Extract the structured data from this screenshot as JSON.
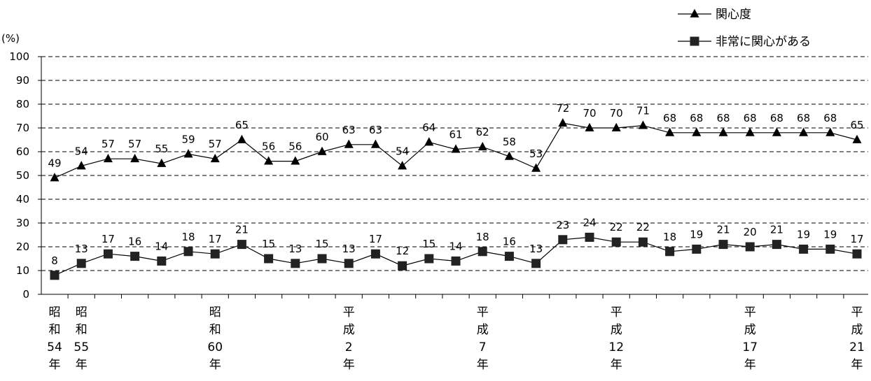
{
  "chart_data": {
    "type": "line",
    "unit_label": "(%)",
    "ylim": [
      0,
      100
    ],
    "yticks": [
      0,
      10,
      20,
      30,
      40,
      50,
      60,
      70,
      80,
      90,
      100
    ],
    "grid": true,
    "legend_position": "top-right",
    "x_labels": [
      {
        "index": 0,
        "text": "昭和54年"
      },
      {
        "index": 1,
        "text": "昭和55年"
      },
      {
        "index": 6,
        "text": "昭和60年"
      },
      {
        "index": 11,
        "text": "平成2年"
      },
      {
        "index": 16,
        "text": "平成7年"
      },
      {
        "index": 21,
        "text": "平成12年"
      },
      {
        "index": 26,
        "text": "平成17年"
      },
      {
        "index": 30,
        "text": "平成21年"
      }
    ],
    "series": [
      {
        "name": "関心度",
        "marker": "triangle",
        "values": [
          49,
          54,
          57,
          57,
          55,
          59,
          57,
          65,
          56,
          56,
          60,
          63,
          63,
          54,
          64,
          61,
          62,
          58,
          53,
          72,
          70,
          70,
          71,
          68,
          68,
          68,
          68,
          68,
          68,
          68,
          65
        ]
      },
      {
        "name": "非常に関心がある",
        "marker": "square",
        "values": [
          8,
          13,
          17,
          16,
          14,
          18,
          17,
          21,
          15,
          13,
          15,
          13,
          17,
          12,
          15,
          14,
          18,
          16,
          13,
          23,
          24,
          22,
          22,
          18,
          19,
          21,
          20,
          21,
          19,
          19,
          17
        ]
      }
    ]
  }
}
